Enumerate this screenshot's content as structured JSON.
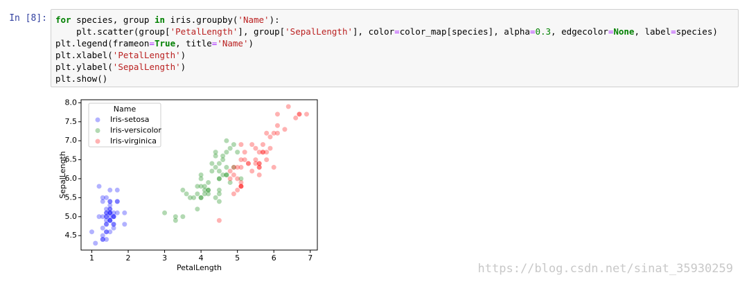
{
  "cell": {
    "prompt": "In [8]:",
    "code": [
      "for species, group in iris.groupby('Name'):",
      "    plt.scatter(group['PetalLength'], group['SepalLength'], color=color_map[species], alpha=0.3, edgecolor=None, label=species)",
      "plt.legend(frameon=True, title='Name')",
      "plt.xlabel('PetalLength')",
      "plt.ylabel('SepalLength')",
      "plt.show()"
    ]
  },
  "chart_data": {
    "type": "scatter",
    "xlabel": "PetalLength",
    "ylabel": "SepalLength",
    "legend_title": "Name",
    "legend": "upper left",
    "alpha": 0.3,
    "xlim": [
      0.705,
      7.195
    ],
    "ylim": [
      4.12,
      8.08
    ],
    "xticks": [
      1,
      2,
      3,
      4,
      5,
      6,
      7
    ],
    "yticks": [
      4.5,
      {
        "value": 5,
        "label": "5.0"
      },
      5.5,
      {
        "value": 6,
        "label": "6.0"
      },
      6.5,
      {
        "value": 7,
        "label": "7.0"
      },
      7.5,
      {
        "value": 8,
        "label": "8.0"
      }
    ],
    "series": [
      {
        "name": "Iris-setosa",
        "color": "blue",
        "x": [
          1.4,
          1.4,
          1.3,
          1.5,
          1.4,
          1.7,
          1.4,
          1.5,
          1.4,
          1.5,
          1.5,
          1.6,
          1.4,
          1.1,
          1.2,
          1.5,
          1.3,
          1.4,
          1.7,
          1.5,
          1.7,
          1.5,
          1.0,
          1.7,
          1.9,
          1.6,
          1.6,
          1.5,
          1.4,
          1.6,
          1.6,
          1.5,
          1.5,
          1.4,
          1.5,
          1.2,
          1.3,
          1.5,
          1.3,
          1.5,
          1.3,
          1.3,
          1.3,
          1.6,
          1.9,
          1.4,
          1.6,
          1.4,
          1.5,
          1.4
        ],
        "y": [
          5.1,
          4.9,
          4.7,
          4.6,
          5.0,
          5.4,
          4.6,
          5.0,
          4.4,
          4.9,
          5.4,
          4.8,
          4.8,
          4.3,
          5.8,
          5.7,
          5.4,
          5.1,
          5.7,
          5.1,
          5.4,
          5.1,
          4.6,
          5.1,
          4.8,
          5.0,
          5.0,
          5.2,
          5.2,
          4.7,
          4.8,
          5.4,
          5.2,
          5.5,
          4.9,
          5.0,
          5.5,
          4.9,
          4.4,
          5.1,
          5.0,
          4.5,
          4.4,
          5.0,
          5.1,
          4.8,
          5.1,
          4.6,
          5.3,
          5.0
        ]
      },
      {
        "name": "Iris-versicolor",
        "color": "green",
        "x": [
          4.7,
          4.5,
          4.9,
          4.0,
          4.6,
          4.5,
          4.7,
          3.3,
          4.6,
          3.9,
          3.5,
          4.2,
          4.0,
          4.7,
          3.6,
          4.4,
          4.5,
          4.1,
          4.5,
          3.9,
          4.8,
          4.0,
          4.9,
          4.7,
          4.3,
          4.4,
          4.8,
          5.0,
          4.5,
          3.5,
          3.8,
          3.7,
          3.9,
          5.1,
          4.5,
          4.5,
          4.7,
          4.4,
          4.1,
          4.0,
          4.4,
          4.6,
          4.0,
          3.3,
          4.2,
          4.2,
          4.2,
          4.3,
          3.0,
          4.1
        ],
        "y": [
          7.0,
          6.4,
          6.9,
          5.5,
          6.5,
          5.7,
          6.3,
          4.9,
          6.6,
          5.2,
          5.0,
          5.9,
          6.0,
          6.1,
          5.6,
          6.7,
          5.6,
          5.8,
          6.2,
          5.6,
          5.9,
          6.1,
          6.3,
          6.1,
          6.4,
          6.6,
          6.8,
          6.7,
          6.0,
          5.7,
          5.5,
          5.5,
          5.8,
          6.0,
          5.4,
          6.0,
          6.7,
          6.3,
          5.6,
          5.5,
          5.5,
          6.1,
          5.8,
          5.0,
          5.6,
          5.7,
          5.7,
          6.2,
          5.1,
          5.7
        ]
      },
      {
        "name": "Iris-virginica",
        "color": "red",
        "x": [
          6.0,
          5.1,
          5.9,
          5.6,
          5.8,
          6.6,
          4.5,
          6.3,
          5.8,
          6.1,
          5.1,
          5.3,
          5.5,
          5.0,
          5.1,
          5.3,
          5.5,
          6.7,
          6.9,
          5.0,
          5.7,
          4.9,
          6.7,
          4.9,
          5.7,
          6.0,
          4.8,
          4.9,
          5.6,
          5.8,
          6.1,
          6.4,
          5.6,
          5.1,
          5.6,
          6.1,
          5.6,
          5.5,
          4.8,
          5.4,
          5.6,
          5.1,
          5.1,
          5.9,
          5.7,
          5.2,
          5.0,
          5.2,
          5.4,
          5.1
        ],
        "y": [
          6.3,
          5.8,
          7.1,
          6.3,
          6.5,
          7.6,
          4.9,
          7.3,
          6.7,
          7.2,
          6.5,
          6.4,
          6.8,
          5.7,
          5.8,
          6.4,
          6.5,
          7.7,
          7.7,
          6.0,
          6.9,
          5.6,
          7.7,
          6.3,
          6.7,
          7.2,
          6.2,
          6.1,
          6.4,
          7.2,
          7.4,
          7.9,
          6.4,
          6.3,
          6.1,
          7.7,
          6.3,
          6.4,
          6.0,
          6.9,
          6.7,
          6.9,
          5.8,
          6.8,
          6.7,
          6.7,
          6.3,
          6.5,
          6.2,
          5.9
        ]
      }
    ]
  },
  "watermark": "https://blog.csdn.net/sinat_35930259"
}
